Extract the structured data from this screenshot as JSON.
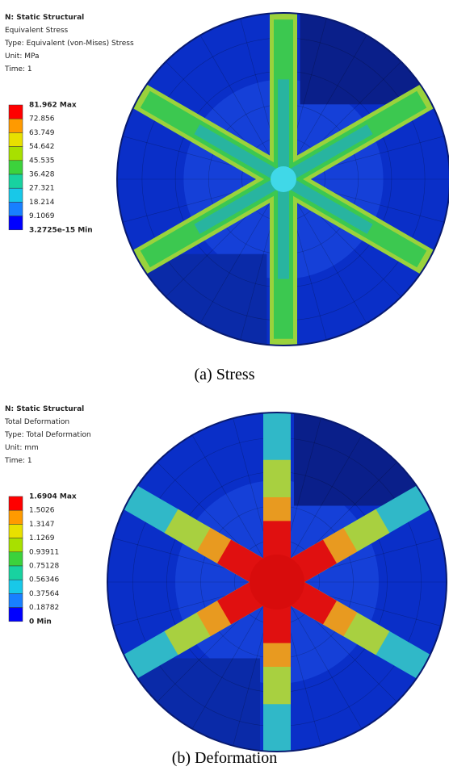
{
  "panels": [
    {
      "header": [
        "N: Static Structural",
        "Equivalent Stress",
        "Type: Equivalent (von-Mises) Stress",
        "Unit: MPa",
        "Time: 1"
      ],
      "legend": [
        "81.962 Max",
        "72.856",
        "63.749",
        "54.642",
        "45.535",
        "36.428",
        "27.321",
        "18.214",
        "9.1069",
        "3.2725e-15 Min"
      ],
      "caption": "(a) Stress"
    },
    {
      "header": [
        "N: Static Structural",
        "Total Deformation",
        "Type: Total Deformation",
        "Unit: mm",
        "Time: 1"
      ],
      "legend": [
        "1.6904 Max",
        "1.5026",
        "1.3147",
        "1.1269",
        "0.93911",
        "0.75128",
        "0.56346",
        "0.37564",
        "0.18782",
        "0 Min"
      ],
      "caption": "(b) Deformation"
    }
  ]
}
